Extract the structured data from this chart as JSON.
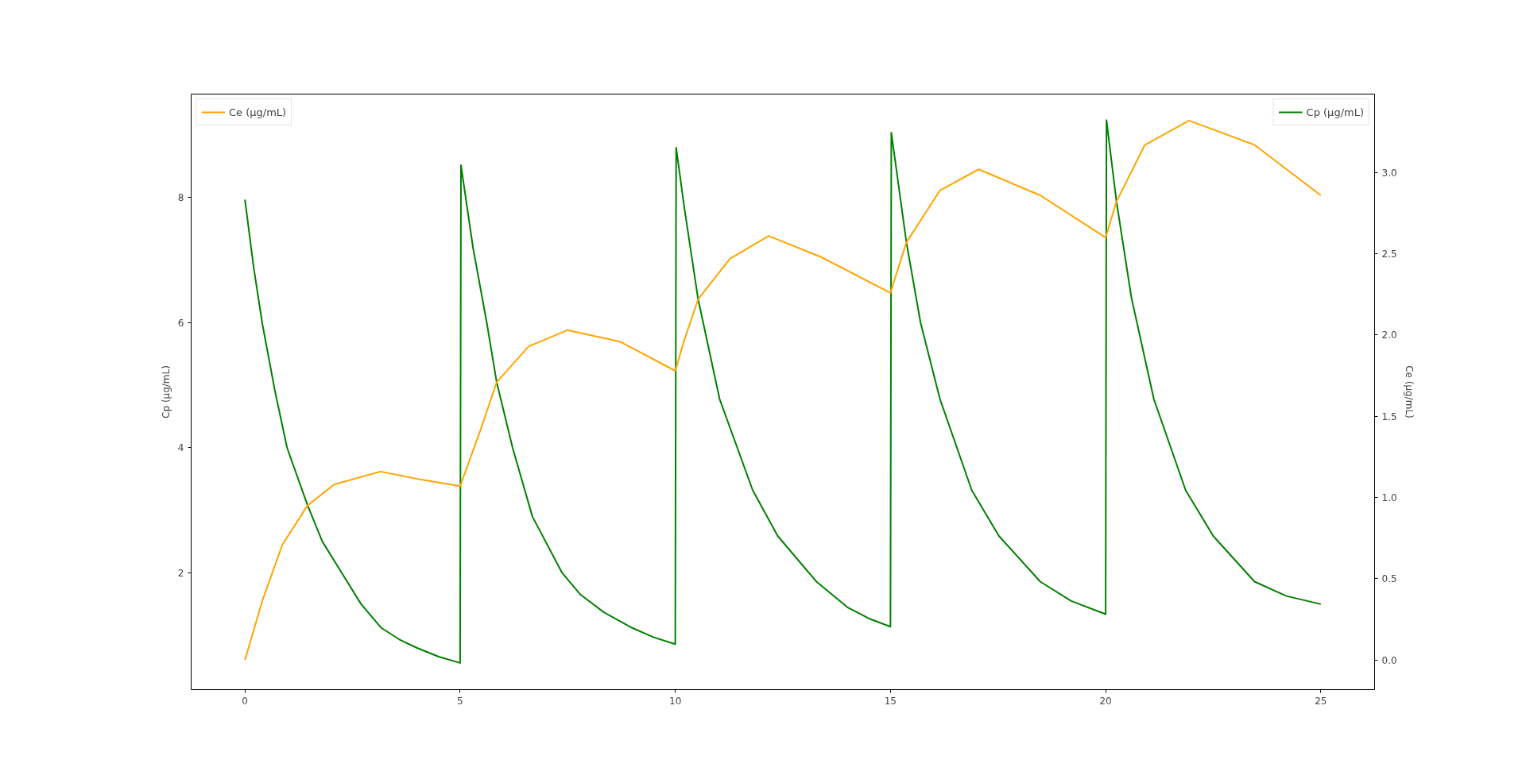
{
  "chart_data": {
    "type": "line",
    "ylabel": "Cp (µg/mL)",
    "y2label": "Ce (µg/mL)",
    "xlim": [
      -1.25,
      26.25
    ],
    "xticks": [
      0,
      5,
      10,
      15,
      20,
      25
    ],
    "ylim": [
      0.133,
      9.657
    ],
    "yticks": [
      2,
      4,
      6,
      8
    ],
    "y2lim": [
      -0.182,
      3.483
    ],
    "y2ticks": [
      {
        "value": 0,
        "label": "0.0"
      },
      {
        "value": 0.5,
        "label": "0.5"
      },
      {
        "value": 1,
        "label": "1.0"
      },
      {
        "value": 1.5,
        "label": "1.5"
      },
      {
        "value": 2,
        "label": "2.0"
      },
      {
        "value": 2.5,
        "label": "2.5"
      },
      {
        "value": 3,
        "label": "3.0"
      }
    ],
    "grid": false,
    "line_style": "solid",
    "legend": "top",
    "series": [
      {
        "name": "Cp (µg/mL)",
        "color": "#008000",
        "x": [
          0,
          0.2,
          0.4,
          0.7,
          0.98,
          1.45,
          1.8,
          2.25,
          2.7,
          3.17,
          3.6,
          4.0,
          4.5,
          5,
          5.02,
          5.3,
          5.62,
          5.85,
          6.22,
          6.68,
          7.37,
          7.8,
          8.34,
          9.0,
          9.5,
          10,
          10.02,
          10.21,
          10.53,
          11.03,
          11.8,
          12.38,
          13.28,
          14.0,
          14.5,
          15,
          15.02,
          15.37,
          15.7,
          16.15,
          16.89,
          17.52,
          18.48,
          19.2,
          20,
          20.02,
          20.25,
          20.6,
          21.12,
          21.86,
          22.5,
          23.46,
          24.2,
          25
        ],
        "values": [
          7.97,
          6.9,
          6.0,
          4.9,
          4.0,
          3.09,
          2.5,
          2.0,
          1.5,
          1.12,
          0.93,
          0.8,
          0.66,
          0.56,
          8.52,
          7.2,
          6.0,
          5.05,
          4.0,
          2.9,
          2.0,
          1.65,
          1.37,
          1.12,
          0.97,
          0.86,
          8.8,
          7.84,
          6.38,
          4.78,
          3.32,
          2.59,
          1.86,
          1.45,
          1.27,
          1.14,
          9.04,
          7.29,
          6.0,
          4.78,
          3.32,
          2.59,
          1.86,
          1.55,
          1.34,
          9.24,
          7.95,
          6.4,
          4.78,
          3.32,
          2.59,
          1.86,
          1.63,
          1.5
        ]
      },
      {
        "name": "Ce (µg/mL)",
        "color": "#ffa500",
        "axis": "y2",
        "x": [
          0,
          0.41,
          0.87,
          1.45,
          2.07,
          3.15,
          4.1,
          5,
          5.48,
          5.85,
          6.59,
          7.49,
          8.71,
          10,
          10.21,
          10.53,
          11.27,
          12.17,
          13.39,
          15,
          15.37,
          16.15,
          17.05,
          18.48,
          20,
          20.25,
          20.91,
          21.94,
          23.46,
          25
        ],
        "values": [
          0,
          0.37,
          0.71,
          0.95,
          1.08,
          1.16,
          1.11,
          1.07,
          1.42,
          1.71,
          1.93,
          2.03,
          1.96,
          1.78,
          1.97,
          2.22,
          2.47,
          2.61,
          2.48,
          2.26,
          2.57,
          2.89,
          3.02,
          2.86,
          2.6,
          2.82,
          3.17,
          3.32,
          3.17,
          2.86
        ]
      }
    ]
  }
}
